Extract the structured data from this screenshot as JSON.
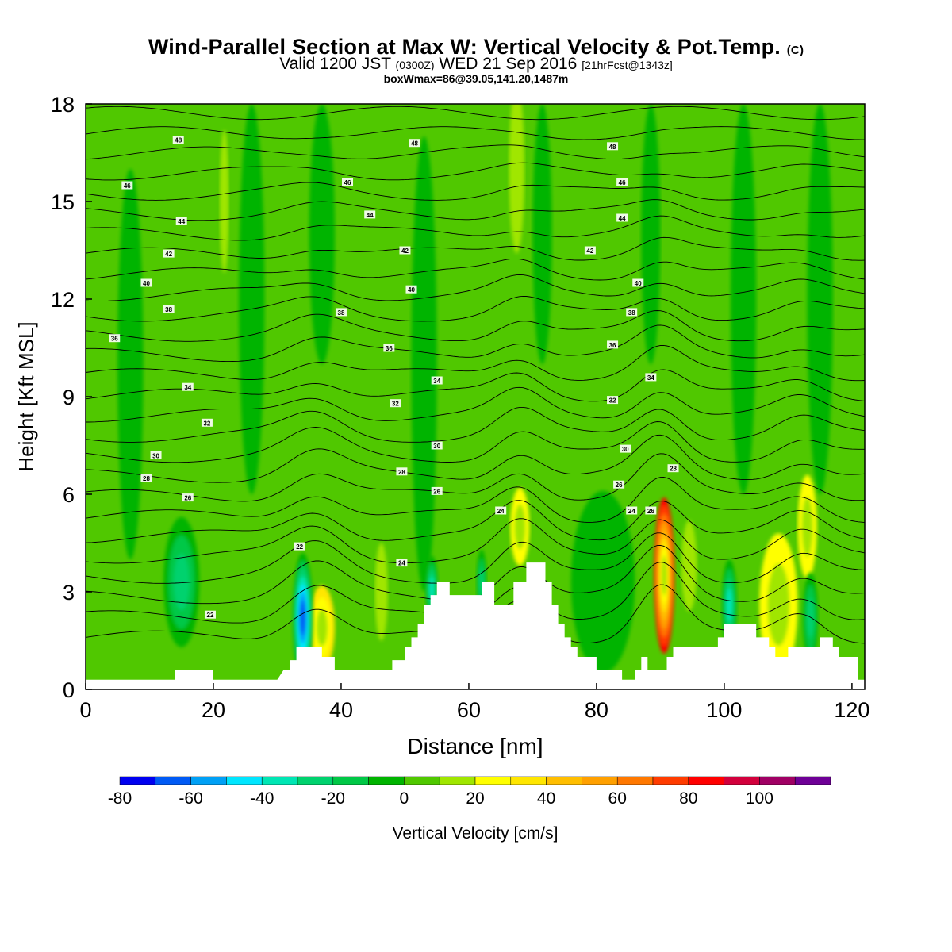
{
  "header": {
    "title": "Wind-Parallel Section at Max W: Vertical Velocity & Pot.Temp.",
    "title_suffix": "(C)",
    "valid_prefix": "Valid 1200 JST",
    "valid_zulu": "(0300Z)",
    "valid_date": "WED 21 Sep 2016",
    "forecast": "[21hrFcst@1343z]",
    "box_info": "boxWmax=86@39.05,141.20,1487m"
  },
  "chart_data": {
    "type": "heatmap",
    "xlabel": "Distance [nm]",
    "ylabel": "Height [Kft MSL]",
    "xlim": [
      0,
      122
    ],
    "ylim": [
      0,
      18
    ],
    "x_ticks": [
      0,
      20,
      40,
      60,
      80,
      100,
      120
    ],
    "y_ticks": [
      0,
      3,
      6,
      9,
      12,
      15,
      18
    ],
    "colorbar": {
      "label": "Vertical Velocity [cm/s]",
      "tick_labels": [
        -80,
        -60,
        -40,
        -20,
        0,
        20,
        40,
        60,
        80,
        100
      ],
      "levels": [
        -80,
        -70,
        -60,
        -50,
        -40,
        -30,
        -20,
        -10,
        0,
        10,
        20,
        30,
        40,
        50,
        60,
        70,
        80,
        90,
        100,
        110
      ],
      "colors": [
        "#0000f0",
        "#005af5",
        "#00a0f5",
        "#00e6ff",
        "#00e6b4",
        "#00d26e",
        "#00c846",
        "#00b400",
        "#50c800",
        "#a0e600",
        "#ffff00",
        "#ffe600",
        "#ffbe00",
        "#ffa000",
        "#ff7800",
        "#ff3c00",
        "#ff0000",
        "#d2003c",
        "#a00064",
        "#6e0096"
      ]
    },
    "background_level": 0,
    "updrafts": [
      {
        "x": 90.6,
        "y": 3.5,
        "rx": 1.6,
        "ry": 2.4,
        "w": 86
      },
      {
        "x": 68.0,
        "y": 5.0,
        "rx": 1.5,
        "ry": 1.2,
        "w": 25
      },
      {
        "x": 37.0,
        "y": 1.9,
        "rx": 2.0,
        "ry": 1.3,
        "w": 35
      },
      {
        "x": 108.5,
        "y": 2.6,
        "rx": 3.0,
        "ry": 2.2,
        "w": 20
      },
      {
        "x": 113.0,
        "y": 5.0,
        "rx": 1.5,
        "ry": 1.6,
        "w": 25
      },
      {
        "x": 67.5,
        "y": 16.0,
        "rx": 1.2,
        "ry": 2.6,
        "w": 15
      },
      {
        "x": 21.7,
        "y": 15.0,
        "rx": 0.7,
        "ry": 2.2,
        "w": 12
      },
      {
        "x": 46.3,
        "y": 3.0,
        "rx": 1.0,
        "ry": 1.5,
        "w": 12
      },
      {
        "x": 94.5,
        "y": 3.8,
        "rx": 1.2,
        "ry": 1.4,
        "w": 12
      }
    ],
    "downdrafts": [
      {
        "x": 34.0,
        "y": 2.2,
        "rx": 1.6,
        "ry": 2.0,
        "w": -72
      },
      {
        "x": 54.2,
        "y": 3.1,
        "rx": 1.0,
        "ry": 1.0,
        "w": -40
      },
      {
        "x": 62.0,
        "y": 3.3,
        "rx": 0.8,
        "ry": 1.0,
        "w": -30
      },
      {
        "x": 100.8,
        "y": 2.6,
        "rx": 1.2,
        "ry": 1.4,
        "w": -40
      },
      {
        "x": 113.5,
        "y": 2.2,
        "rx": 1.2,
        "ry": 1.4,
        "w": -35
      },
      {
        "x": 15.0,
        "y": 3.3,
        "rx": 2.8,
        "ry": 2.0,
        "w": -35
      },
      {
        "x": 81.0,
        "y": 3.3,
        "rx": 5.0,
        "ry": 2.8,
        "w": -15
      },
      {
        "x": 53.0,
        "y": 10.0,
        "rx": 2.0,
        "ry": 7.0,
        "w": -12
      },
      {
        "x": 37.0,
        "y": 14.0,
        "rx": 2.0,
        "ry": 4.0,
        "w": -12
      },
      {
        "x": 71.5,
        "y": 14.0,
        "rx": 1.5,
        "ry": 4.0,
        "w": -14
      },
      {
        "x": 88.5,
        "y": 14.0,
        "rx": 1.5,
        "ry": 4.0,
        "w": -12
      },
      {
        "x": 103.0,
        "y": 12.0,
        "rx": 2.0,
        "ry": 6.0,
        "w": -12
      },
      {
        "x": 7.0,
        "y": 10.0,
        "rx": 2.0,
        "ry": 6.0,
        "w": -12
      },
      {
        "x": 26.0,
        "y": 12.0,
        "rx": 2.0,
        "ry": 6.0,
        "w": -12
      },
      {
        "x": 115.0,
        "y": 12.0,
        "rx": 2.0,
        "ry": 6.0,
        "w": -10
      }
    ],
    "terrain": [
      [
        0,
        0.3
      ],
      [
        14,
        0.3
      ],
      [
        14,
        0.6
      ],
      [
        17,
        0.6
      ],
      [
        17,
        0.6
      ],
      [
        20,
        0.6
      ],
      [
        20,
        0.3
      ],
      [
        24,
        0.3
      ],
      [
        24,
        0.3
      ],
      [
        28,
        0.3
      ],
      [
        30,
        0.3
      ],
      [
        31,
        0.6
      ],
      [
        32,
        0.6
      ],
      [
        32,
        0.9
      ],
      [
        33,
        0.9
      ],
      [
        33,
        1.3
      ],
      [
        37,
        1.3
      ],
      [
        37,
        1.0
      ],
      [
        39,
        1.0
      ],
      [
        39,
        0.6
      ],
      [
        48,
        0.6
      ],
      [
        48,
        0.9
      ],
      [
        50,
        0.9
      ],
      [
        50,
        1.3
      ],
      [
        51,
        1.3
      ],
      [
        51,
        1.6
      ],
      [
        52,
        1.6
      ],
      [
        52,
        2.0
      ],
      [
        53,
        2.0
      ],
      [
        53,
        2.6
      ],
      [
        54,
        2.6
      ],
      [
        54,
        2.9
      ],
      [
        55,
        2.9
      ],
      [
        55,
        3.3
      ],
      [
        57,
        3.3
      ],
      [
        57,
        2.9
      ],
      [
        60,
        2.9
      ],
      [
        60,
        2.9
      ],
      [
        62,
        2.9
      ],
      [
        62,
        3.3
      ],
      [
        64,
        3.3
      ],
      [
        64,
        2.6
      ],
      [
        67,
        2.6
      ],
      [
        67,
        3.3
      ],
      [
        69,
        3.3
      ],
      [
        69,
        3.9
      ],
      [
        72,
        3.9
      ],
      [
        72,
        3.3
      ],
      [
        73,
        3.3
      ],
      [
        73,
        2.6
      ],
      [
        74,
        2.6
      ],
      [
        74,
        2.0
      ],
      [
        75,
        2.0
      ],
      [
        75,
        1.6
      ],
      [
        76,
        1.6
      ],
      [
        76,
        1.3
      ],
      [
        77,
        1.3
      ],
      [
        77,
        1.0
      ],
      [
        80,
        1.0
      ],
      [
        80,
        0.6
      ],
      [
        84,
        0.6
      ],
      [
        84,
        0.3
      ],
      [
        86,
        0.3
      ],
      [
        86,
        0.6
      ],
      [
        87,
        0.6
      ],
      [
        87,
        1.0
      ],
      [
        88,
        1.0
      ],
      [
        88,
        0.6
      ],
      [
        91,
        0.6
      ],
      [
        91,
        1.0
      ],
      [
        92,
        1.0
      ],
      [
        92,
        1.3
      ],
      [
        99,
        1.3
      ],
      [
        99,
        1.6
      ],
      [
        100,
        1.6
      ],
      [
        100,
        2.0
      ],
      [
        105,
        2.0
      ],
      [
        105,
        1.6
      ],
      [
        107,
        1.6
      ],
      [
        107,
        1.3
      ],
      [
        108,
        1.3
      ],
      [
        108,
        1.0
      ],
      [
        110,
        1.0
      ],
      [
        110,
        1.3
      ],
      [
        115,
        1.3
      ],
      [
        115,
        1.6
      ],
      [
        117,
        1.6
      ],
      [
        117,
        1.3
      ],
      [
        118,
        1.3
      ],
      [
        118,
        1.0
      ],
      [
        121,
        1.0
      ],
      [
        121,
        0.3
      ],
      [
        122,
        0.3
      ]
    ],
    "theta_levels": [
      22,
      23,
      24,
      25,
      26,
      27,
      28,
      29,
      30,
      31,
      32,
      33,
      34,
      35,
      36,
      37,
      38,
      39,
      40,
      41,
      42,
      43,
      44,
      45,
      46,
      47,
      48,
      49
    ],
    "theta_labels": [
      {
        "x": 14.5,
        "y": 16.9,
        "text": "48"
      },
      {
        "x": 51.5,
        "y": 16.8,
        "text": "48"
      },
      {
        "x": 82.5,
        "y": 16.7,
        "text": "48"
      },
      {
        "x": 6.5,
        "y": 15.5,
        "text": "46"
      },
      {
        "x": 41.0,
        "y": 15.6,
        "text": "46"
      },
      {
        "x": 84.0,
        "y": 15.6,
        "text": "46"
      },
      {
        "x": 15.0,
        "y": 14.4,
        "text": "44"
      },
      {
        "x": 44.5,
        "y": 14.6,
        "text": "44"
      },
      {
        "x": 84.0,
        "y": 14.5,
        "text": "44"
      },
      {
        "x": 13.0,
        "y": 13.4,
        "text": "42"
      },
      {
        "x": 50.0,
        "y": 13.5,
        "text": "42"
      },
      {
        "x": 79.0,
        "y": 13.5,
        "text": "42"
      },
      {
        "x": 9.5,
        "y": 12.5,
        "text": "40"
      },
      {
        "x": 51.0,
        "y": 12.3,
        "text": "40"
      },
      {
        "x": 86.5,
        "y": 12.5,
        "text": "40"
      },
      {
        "x": 13.0,
        "y": 11.7,
        "text": "38"
      },
      {
        "x": 40.0,
        "y": 11.6,
        "text": "38"
      },
      {
        "x": 85.5,
        "y": 11.6,
        "text": "38"
      },
      {
        "x": 4.5,
        "y": 10.8,
        "text": "36"
      },
      {
        "x": 47.5,
        "y": 10.5,
        "text": "36"
      },
      {
        "x": 82.5,
        "y": 10.6,
        "text": "36"
      },
      {
        "x": 16.0,
        "y": 9.3,
        "text": "34"
      },
      {
        "x": 55.0,
        "y": 9.5,
        "text": "34"
      },
      {
        "x": 88.5,
        "y": 9.6,
        "text": "34"
      },
      {
        "x": 19.0,
        "y": 8.2,
        "text": "32"
      },
      {
        "x": 48.5,
        "y": 8.8,
        "text": "32"
      },
      {
        "x": 82.5,
        "y": 8.9,
        "text": "32"
      },
      {
        "x": 11.0,
        "y": 7.2,
        "text": "30"
      },
      {
        "x": 55.0,
        "y": 7.5,
        "text": "30"
      },
      {
        "x": 84.5,
        "y": 7.4,
        "text": "30"
      },
      {
        "x": 9.5,
        "y": 6.5,
        "text": "28"
      },
      {
        "x": 49.5,
        "y": 6.7,
        "text": "28"
      },
      {
        "x": 92.0,
        "y": 6.8,
        "text": "28"
      },
      {
        "x": 16.0,
        "y": 5.9,
        "text": "26"
      },
      {
        "x": 55.0,
        "y": 6.1,
        "text": "26"
      },
      {
        "x": 83.5,
        "y": 6.3,
        "text": "26"
      },
      {
        "x": 65.0,
        "y": 5.5,
        "text": "24"
      },
      {
        "x": 85.5,
        "y": 5.5,
        "text": "24"
      },
      {
        "x": 88.5,
        "y": 5.5,
        "text": "26"
      },
      {
        "x": 33.5,
        "y": 4.4,
        "text": "22"
      },
      {
        "x": 49.5,
        "y": 3.9,
        "text": "24"
      },
      {
        "x": 19.5,
        "y": 2.3,
        "text": "22"
      }
    ]
  }
}
